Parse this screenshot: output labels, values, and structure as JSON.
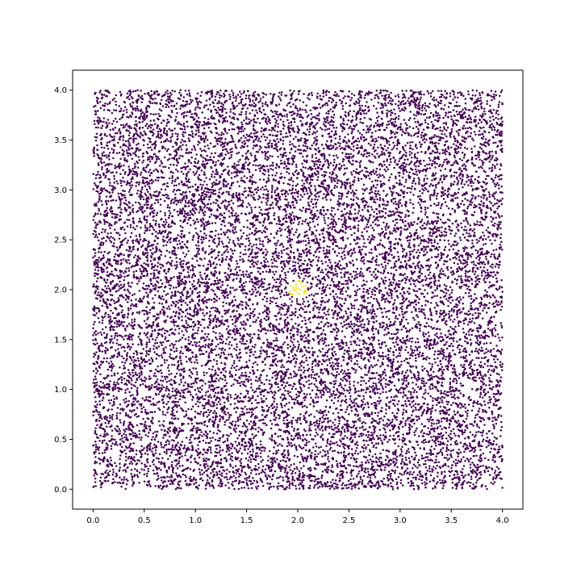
{
  "chart_data": {
    "type": "scatter",
    "title": "",
    "xlabel": "",
    "ylabel": "",
    "xlim": [
      -0.2,
      4.2
    ],
    "ylim": [
      -0.2,
      4.2
    ],
    "x_ticks": [
      0.0,
      0.5,
      1.0,
      1.5,
      2.0,
      2.5,
      3.0,
      3.5,
      4.0
    ],
    "y_ticks": [
      0.0,
      0.5,
      1.0,
      1.5,
      2.0,
      2.5,
      3.0,
      3.5,
      4.0
    ],
    "x_tick_labels": [
      "0.0",
      "0.5",
      "1.0",
      "1.5",
      "2.0",
      "2.5",
      "3.0",
      "3.5",
      "4.0"
    ],
    "y_tick_labels": [
      "0.0",
      "0.5",
      "1.0",
      "1.5",
      "2.0",
      "2.5",
      "3.0",
      "3.5",
      "4.0"
    ],
    "grid": false,
    "colormap": "viridis",
    "series": [
      {
        "color": "#440154",
        "distribution": "uniform",
        "x_range": [
          0.0,
          4.0
        ],
        "y_range": [
          0.0,
          4.0
        ],
        "approx_count": 16000
      },
      {
        "color": "#fde725",
        "distribution": "disk",
        "center": [
          2.0,
          2.0
        ],
        "radius": 0.09,
        "approx_count": 30
      }
    ]
  }
}
